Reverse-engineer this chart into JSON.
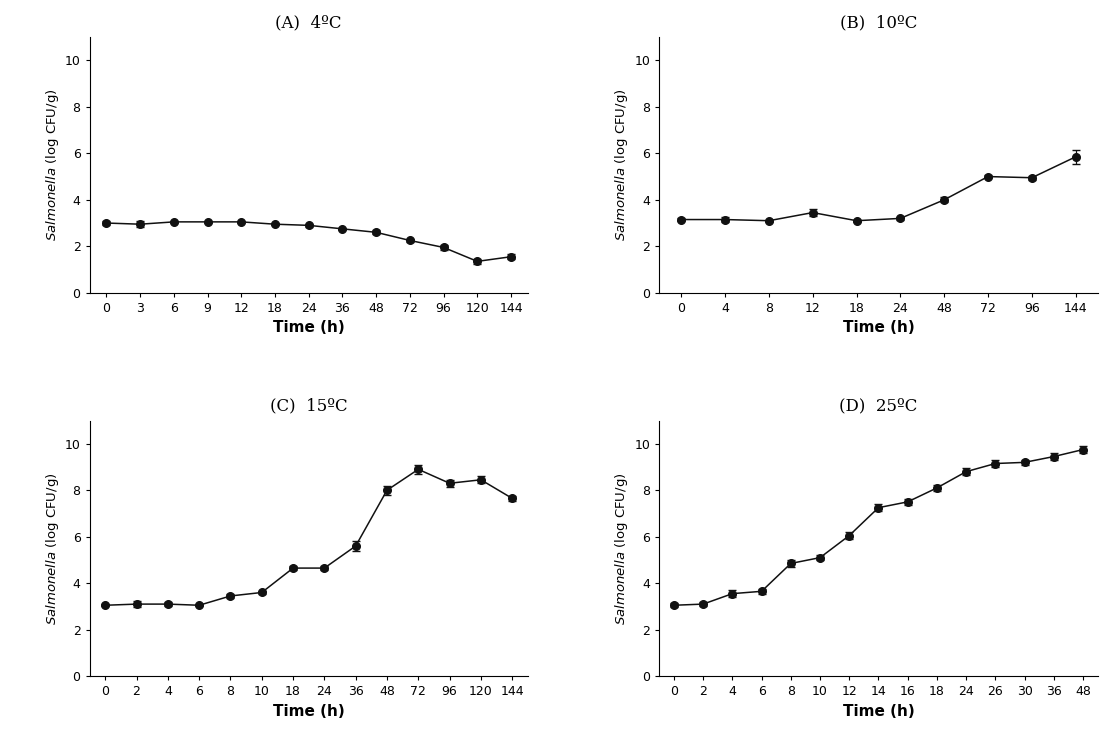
{
  "panels": [
    {
      "title": "(A)  4ºC",
      "x_labels": [
        0,
        3,
        6,
        9,
        12,
        18,
        24,
        36,
        48,
        72,
        96,
        120,
        144
      ],
      "y": [
        3.0,
        2.95,
        3.05,
        3.05,
        3.05,
        2.95,
        2.9,
        2.75,
        2.6,
        2.25,
        1.95,
        1.35,
        1.55
      ],
      "yerr": [
        0.07,
        0.12,
        0.05,
        0.05,
        0.05,
        0.05,
        0.05,
        0.05,
        0.08,
        0.08,
        0.1,
        0.1,
        0.1
      ],
      "ylim": [
        0,
        11
      ]
    },
    {
      "title": "(B)  10ºC",
      "x_labels": [
        0,
        4,
        8,
        12,
        18,
        24,
        48,
        72,
        96,
        144
      ],
      "y": [
        3.15,
        3.15,
        3.1,
        3.45,
        3.1,
        3.2,
        4.0,
        5.0,
        4.95,
        5.85
      ],
      "yerr": [
        0.08,
        0.1,
        0.05,
        0.15,
        0.05,
        0.05,
        0.1,
        0.08,
        0.08,
        0.3
      ],
      "ylim": [
        0,
        11
      ]
    },
    {
      "title": "(C)  15ºC",
      "x_labels": [
        0,
        2,
        4,
        6,
        8,
        10,
        18,
        24,
        36,
        48,
        72,
        96,
        120,
        144
      ],
      "y": [
        3.05,
        3.1,
        3.1,
        3.05,
        3.45,
        3.6,
        4.65,
        4.65,
        5.6,
        8.0,
        8.9,
        8.3,
        8.45,
        7.65
      ],
      "yerr": [
        0.05,
        0.12,
        0.08,
        0.05,
        0.08,
        0.08,
        0.1,
        0.1,
        0.2,
        0.2,
        0.2,
        0.15,
        0.15,
        0.1
      ],
      "ylim": [
        0,
        11
      ]
    },
    {
      "title": "(D)  25ºC",
      "x_labels": [
        0,
        2,
        4,
        6,
        8,
        10,
        12,
        14,
        16,
        18,
        24,
        26,
        30,
        36,
        48
      ],
      "y": [
        3.05,
        3.1,
        3.55,
        3.65,
        4.85,
        5.1,
        6.05,
        7.25,
        7.5,
        8.1,
        8.8,
        9.15,
        9.2,
        9.45,
        9.75
      ],
      "yerr": [
        0.08,
        0.1,
        0.15,
        0.12,
        0.15,
        0.12,
        0.15,
        0.15,
        0.12,
        0.12,
        0.15,
        0.15,
        0.1,
        0.15,
        0.15
      ],
      "ylim": [
        0,
        11
      ]
    }
  ],
  "xlabel": "Time (h)",
  "yticks": [
    0,
    2,
    4,
    6,
    8,
    10
  ],
  "line_color": "#111111",
  "markersize": 5.5,
  "capsize": 3,
  "linewidth": 1.1,
  "elinewidth": 0.9
}
